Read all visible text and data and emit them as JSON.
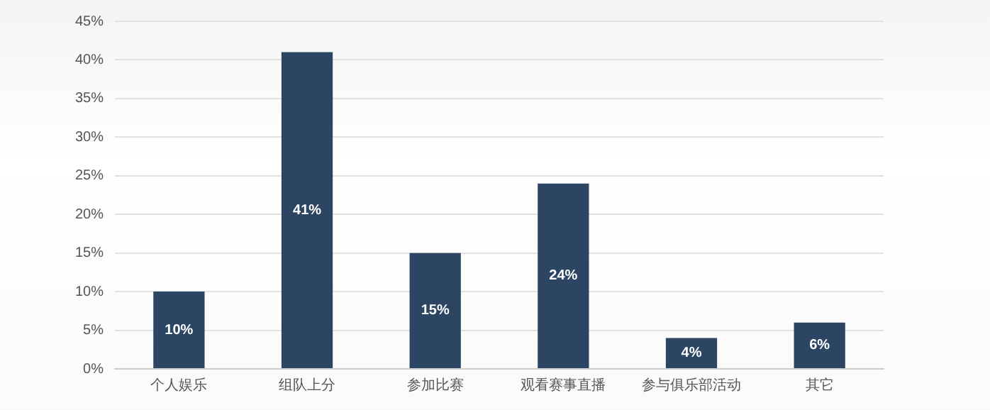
{
  "chart_data": {
    "type": "bar",
    "categories": [
      "个人娱乐",
      "组队上分",
      "参加比赛",
      "观看赛事直播",
      "参与俱乐部活动",
      "其它"
    ],
    "values": [
      10,
      41,
      15,
      24,
      4,
      6
    ],
    "value_labels": [
      "10%",
      "41%",
      "15%",
      "24%",
      "4%",
      "6%"
    ],
    "color": "#2c4563",
    "ylim": [
      0,
      45
    ],
    "yticks": [
      {
        "value": 0,
        "label": "0%"
      },
      {
        "value": 5,
        "label": "5%"
      },
      {
        "value": 10,
        "label": "10%"
      },
      {
        "value": 15,
        "label": "15%"
      },
      {
        "value": 20,
        "label": "20%"
      },
      {
        "value": 25,
        "label": "25%"
      },
      {
        "value": 30,
        "label": "30%"
      },
      {
        "value": 35,
        "label": "35%"
      },
      {
        "value": 40,
        "label": "40%"
      },
      {
        "value": 45,
        "label": "45%"
      }
    ],
    "grid": "y",
    "legend": false
  }
}
